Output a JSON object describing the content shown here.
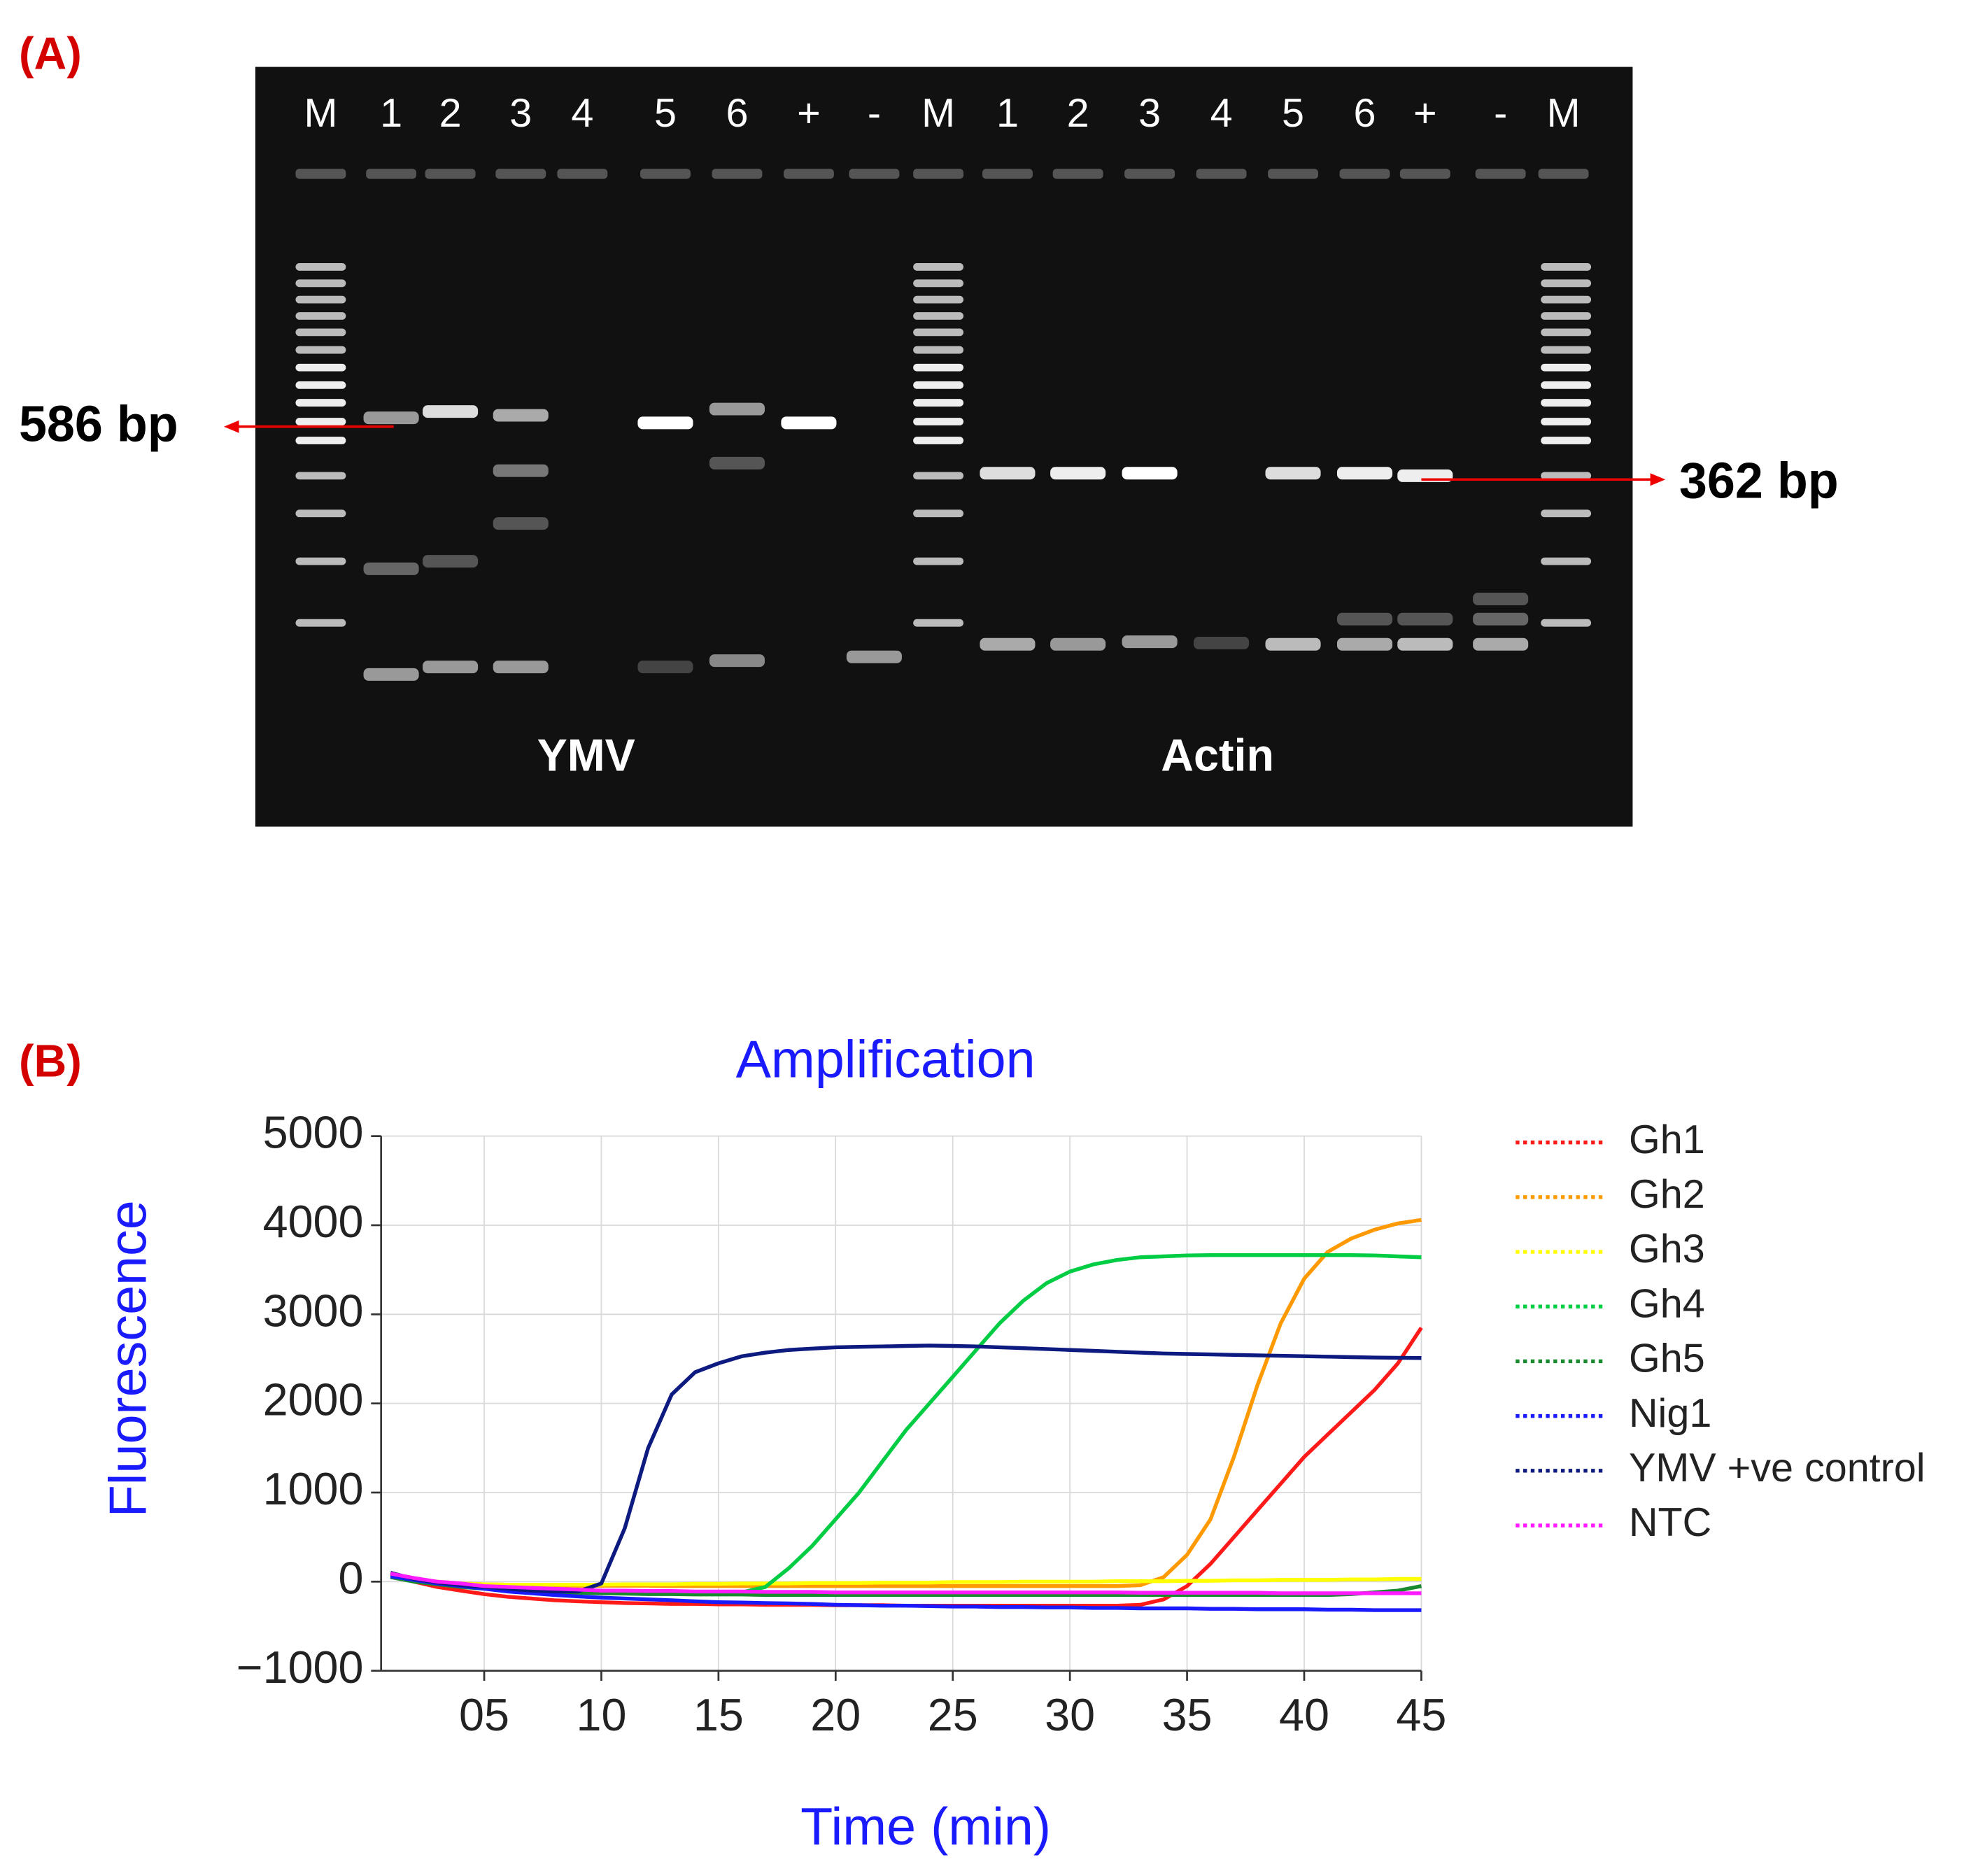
{
  "panel_a": {
    "label": "(A)",
    "lane_labels": [
      "M",
      "1",
      "2",
      "3",
      "4",
      "5",
      "6",
      "+",
      "-",
      "M",
      "1",
      "2",
      "3",
      "4",
      "5",
      "6",
      "+",
      "-",
      "M"
    ],
    "band_labels": [
      "586 bp",
      "362 bp"
    ],
    "group_labels": [
      "YMV",
      "Actin"
    ]
  },
  "chart_data": {
    "type": "line",
    "panel_label": "(B)",
    "title": "Amplification",
    "x_label": "Time (min)",
    "y_label": "Fluorescence",
    "xlim": [
      0.6,
      45
    ],
    "ylim": [
      -1000,
      5000
    ],
    "xticks": [
      {
        "value": 5,
        "label": "05"
      },
      10,
      15,
      20,
      25,
      30,
      35,
      40,
      45
    ],
    "yticks": [
      {
        "value": -1000,
        "label": "−1000"
      },
      0,
      1000,
      2000,
      3000,
      4000,
      5000
    ],
    "grid": true,
    "legend": "right",
    "x": [
      1,
      2,
      3,
      4,
      5,
      6,
      7,
      8,
      9,
      10,
      11,
      12,
      13,
      14,
      15,
      16,
      17,
      18,
      19,
      20,
      21,
      22,
      23,
      24,
      25,
      26,
      27,
      28,
      29,
      30,
      31,
      32,
      33,
      34,
      35,
      36,
      37,
      38,
      39,
      40,
      41,
      42,
      43,
      44,
      45
    ],
    "series": [
      {
        "name": "Gh1",
        "color": "#ff1a1a",
        "values": [
          80,
          0,
          -60,
          -100,
          -140,
          -170,
          -190,
          -210,
          -220,
          -230,
          -240,
          -245,
          -250,
          -250,
          -255,
          -255,
          -260,
          -260,
          -260,
          -265,
          -265,
          -265,
          -270,
          -270,
          -270,
          -270,
          -270,
          -270,
          -270,
          -270,
          -270,
          -270,
          -260,
          -200,
          -50,
          200,
          500,
          800,
          1100,
          1400,
          1650,
          1900,
          2150,
          2450,
          2850
        ]
      },
      {
        "name": "Gh2",
        "color": "#ff9900",
        "values": [
          80,
          30,
          0,
          -20,
          -30,
          -35,
          -40,
          -40,
          -45,
          -45,
          -45,
          -45,
          -50,
          -50,
          -50,
          -50,
          -50,
          -50,
          -50,
          -50,
          -50,
          -50,
          -50,
          -50,
          -50,
          -50,
          -50,
          -50,
          -50,
          -50,
          -50,
          -50,
          -40,
          50,
          300,
          700,
          1400,
          2200,
          2900,
          3400,
          3700,
          3850,
          3950,
          4020,
          4060
        ]
      },
      {
        "name": "Gh3",
        "color": "#ffff00",
        "values": [
          80,
          30,
          0,
          -20,
          -30,
          -35,
          -35,
          -35,
          -35,
          -35,
          -30,
          -30,
          -30,
          -25,
          -25,
          -20,
          -20,
          -20,
          -15,
          -15,
          -15,
          -10,
          -10,
          -10,
          -5,
          -5,
          -5,
          0,
          0,
          0,
          0,
          5,
          5,
          5,
          10,
          10,
          15,
          15,
          20,
          20,
          20,
          25,
          25,
          30,
          30
        ]
      },
      {
        "name": "Gh4",
        "color": "#00cc44",
        "values": [
          80,
          20,
          -20,
          -50,
          -70,
          -90,
          -100,
          -110,
          -115,
          -120,
          -125,
          -125,
          -130,
          -130,
          -130,
          -120,
          -60,
          150,
          400,
          700,
          1000,
          1350,
          1700,
          2000,
          2300,
          2600,
          2900,
          3150,
          3350,
          3480,
          3560,
          3610,
          3640,
          3650,
          3660,
          3665,
          3665,
          3665,
          3665,
          3665,
          3665,
          3665,
          3660,
          3650,
          3640
        ]
      },
      {
        "name": "Gh5",
        "color": "#1a8a2e",
        "values": [
          50,
          0,
          -30,
          -60,
          -80,
          -100,
          -110,
          -120,
          -125,
          -130,
          -135,
          -140,
          -140,
          -145,
          -145,
          -145,
          -150,
          -150,
          -150,
          -150,
          -150,
          -150,
          -150,
          -150,
          -150,
          -150,
          -150,
          -150,
          -150,
          -150,
          -150,
          -150,
          -150,
          -150,
          -150,
          -150,
          -150,
          -150,
          -150,
          -150,
          -150,
          -140,
          -120,
          -100,
          -50
        ]
      },
      {
        "name": "Nig1",
        "color": "#1a1aff",
        "values": [
          60,
          20,
          -20,
          -50,
          -80,
          -110,
          -130,
          -150,
          -165,
          -180,
          -190,
          -200,
          -210,
          -220,
          -230,
          -235,
          -240,
          -245,
          -250,
          -260,
          -265,
          -270,
          -270,
          -275,
          -280,
          -280,
          -285,
          -285,
          -290,
          -290,
          -295,
          -295,
          -300,
          -300,
          -300,
          -305,
          -305,
          -310,
          -310,
          -310,
          -315,
          -315,
          -320,
          -320,
          -320
        ]
      },
      {
        "name": "YMV +ve control",
        "color": "#0d1a80",
        "values": [
          100,
          30,
          -10,
          -40,
          -60,
          -80,
          -100,
          -110,
          -110,
          -20,
          600,
          1500,
          2100,
          2350,
          2450,
          2530,
          2570,
          2600,
          2615,
          2630,
          2635,
          2640,
          2645,
          2650,
          2645,
          2640,
          2630,
          2620,
          2610,
          2600,
          2590,
          2580,
          2570,
          2560,
          2555,
          2550,
          2545,
          2540,
          2535,
          2530,
          2525,
          2520,
          2515,
          2512,
          2510
        ]
      },
      {
        "name": "NTC",
        "color": "#ff1aff",
        "values": [
          90,
          40,
          0,
          -20,
          -50,
          -60,
          -70,
          -80,
          -90,
          -100,
          -100,
          -105,
          -105,
          -110,
          -110,
          -110,
          -115,
          -115,
          -115,
          -120,
          -120,
          -120,
          -120,
          -120,
          -120,
          -120,
          -120,
          -120,
          -120,
          -120,
          -120,
          -120,
          -125,
          -125,
          -125,
          -125,
          -125,
          -125,
          -130,
          -130,
          -130,
          -130,
          -130,
          -130,
          -130
        ]
      }
    ]
  }
}
